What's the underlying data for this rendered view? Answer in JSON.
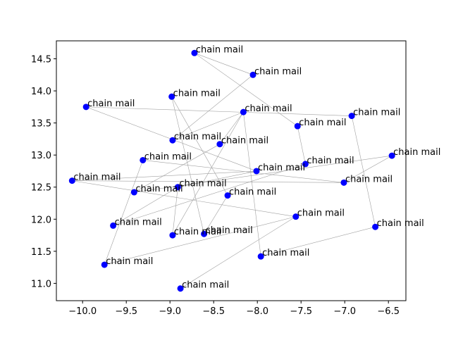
{
  "chart_data": {
    "type": "scatter",
    "title": "",
    "xlabel": "",
    "ylabel": "",
    "xlim": [
      -10.3,
      -6.3
    ],
    "ylim": [
      10.73,
      14.78
    ],
    "xticks": [
      -10.0,
      -9.5,
      -9.0,
      -8.5,
      -8.0,
      -7.5,
      -7.0,
      -6.5
    ],
    "xtick_labels": [
      "−10.0",
      "−9.5",
      "−9.0",
      "−8.5",
      "−8.0",
      "−7.5",
      "−7.0",
      "−6.5"
    ],
    "yticks": [
      11.0,
      11.5,
      12.0,
      12.5,
      13.0,
      13.5,
      14.0,
      14.5
    ],
    "ytick_labels": [
      "11.0",
      "11.5",
      "12.0",
      "12.5",
      "13.0",
      "13.5",
      "14.0",
      "14.5"
    ],
    "grid": false,
    "marker_color": "#0000ff",
    "edge_color": "#a0a0a0",
    "points": [
      {
        "x": -8.72,
        "y": 14.59,
        "label": "chain mail"
      },
      {
        "x": -8.05,
        "y": 14.25,
        "label": "chain mail"
      },
      {
        "x": -8.98,
        "y": 13.91,
        "label": "chain mail"
      },
      {
        "x": -9.96,
        "y": 13.75,
        "label": "chain mail"
      },
      {
        "x": -8.16,
        "y": 13.67,
        "label": "chain mail"
      },
      {
        "x": -6.92,
        "y": 13.61,
        "label": "chain mail"
      },
      {
        "x": -7.54,
        "y": 13.45,
        "label": "chain mail"
      },
      {
        "x": -8.97,
        "y": 13.23,
        "label": "chain mail"
      },
      {
        "x": -8.43,
        "y": 13.17,
        "label": "chain mail"
      },
      {
        "x": -6.46,
        "y": 12.99,
        "label": "chain mail"
      },
      {
        "x": -9.31,
        "y": 12.92,
        "label": "chain mail"
      },
      {
        "x": -7.45,
        "y": 12.86,
        "label": "chain mail"
      },
      {
        "x": -8.01,
        "y": 12.75,
        "label": "chain mail"
      },
      {
        "x": -10.12,
        "y": 12.6,
        "label": "chain mail"
      },
      {
        "x": -7.01,
        "y": 12.57,
        "label": "chain mail"
      },
      {
        "x": -8.91,
        "y": 12.5,
        "label": "chain mail"
      },
      {
        "x": -9.41,
        "y": 12.42,
        "label": "chain mail"
      },
      {
        "x": -8.34,
        "y": 12.37,
        "label": "chain mail"
      },
      {
        "x": -7.56,
        "y": 12.04,
        "label": "chain mail"
      },
      {
        "x": -9.65,
        "y": 11.9,
        "label": "chain mail"
      },
      {
        "x": -6.65,
        "y": 11.88,
        "label": "chain mail"
      },
      {
        "x": -8.61,
        "y": 11.77,
        "label": "chain mail"
      },
      {
        "x": -8.97,
        "y": 11.75,
        "label": "chain mail"
      },
      {
        "x": -7.96,
        "y": 11.42,
        "label": "chain mail"
      },
      {
        "x": -9.75,
        "y": 11.29,
        "label": "chain mail"
      },
      {
        "x": -8.88,
        "y": 10.92,
        "label": "chain mail"
      }
    ],
    "edges": [
      [
        0,
        1
      ],
      [
        0,
        6
      ],
      [
        1,
        7
      ],
      [
        2,
        17
      ],
      [
        2,
        21
      ],
      [
        3,
        5
      ],
      [
        4,
        22
      ],
      [
        4,
        23
      ],
      [
        5,
        20
      ],
      [
        6,
        11
      ],
      [
        7,
        4
      ],
      [
        8,
        4
      ],
      [
        9,
        14
      ],
      [
        9,
        16
      ],
      [
        10,
        24
      ],
      [
        10,
        14
      ],
      [
        11,
        19
      ],
      [
        12,
        13
      ],
      [
        13,
        18
      ],
      [
        15,
        22
      ],
      [
        15,
        12
      ],
      [
        16,
        8
      ],
      [
        17,
        21
      ],
      [
        18,
        25
      ],
      [
        18,
        24
      ],
      [
        20,
        23
      ],
      [
        12,
        3
      ],
      [
        14,
        13
      ],
      [
        15,
        19
      ]
    ]
  }
}
